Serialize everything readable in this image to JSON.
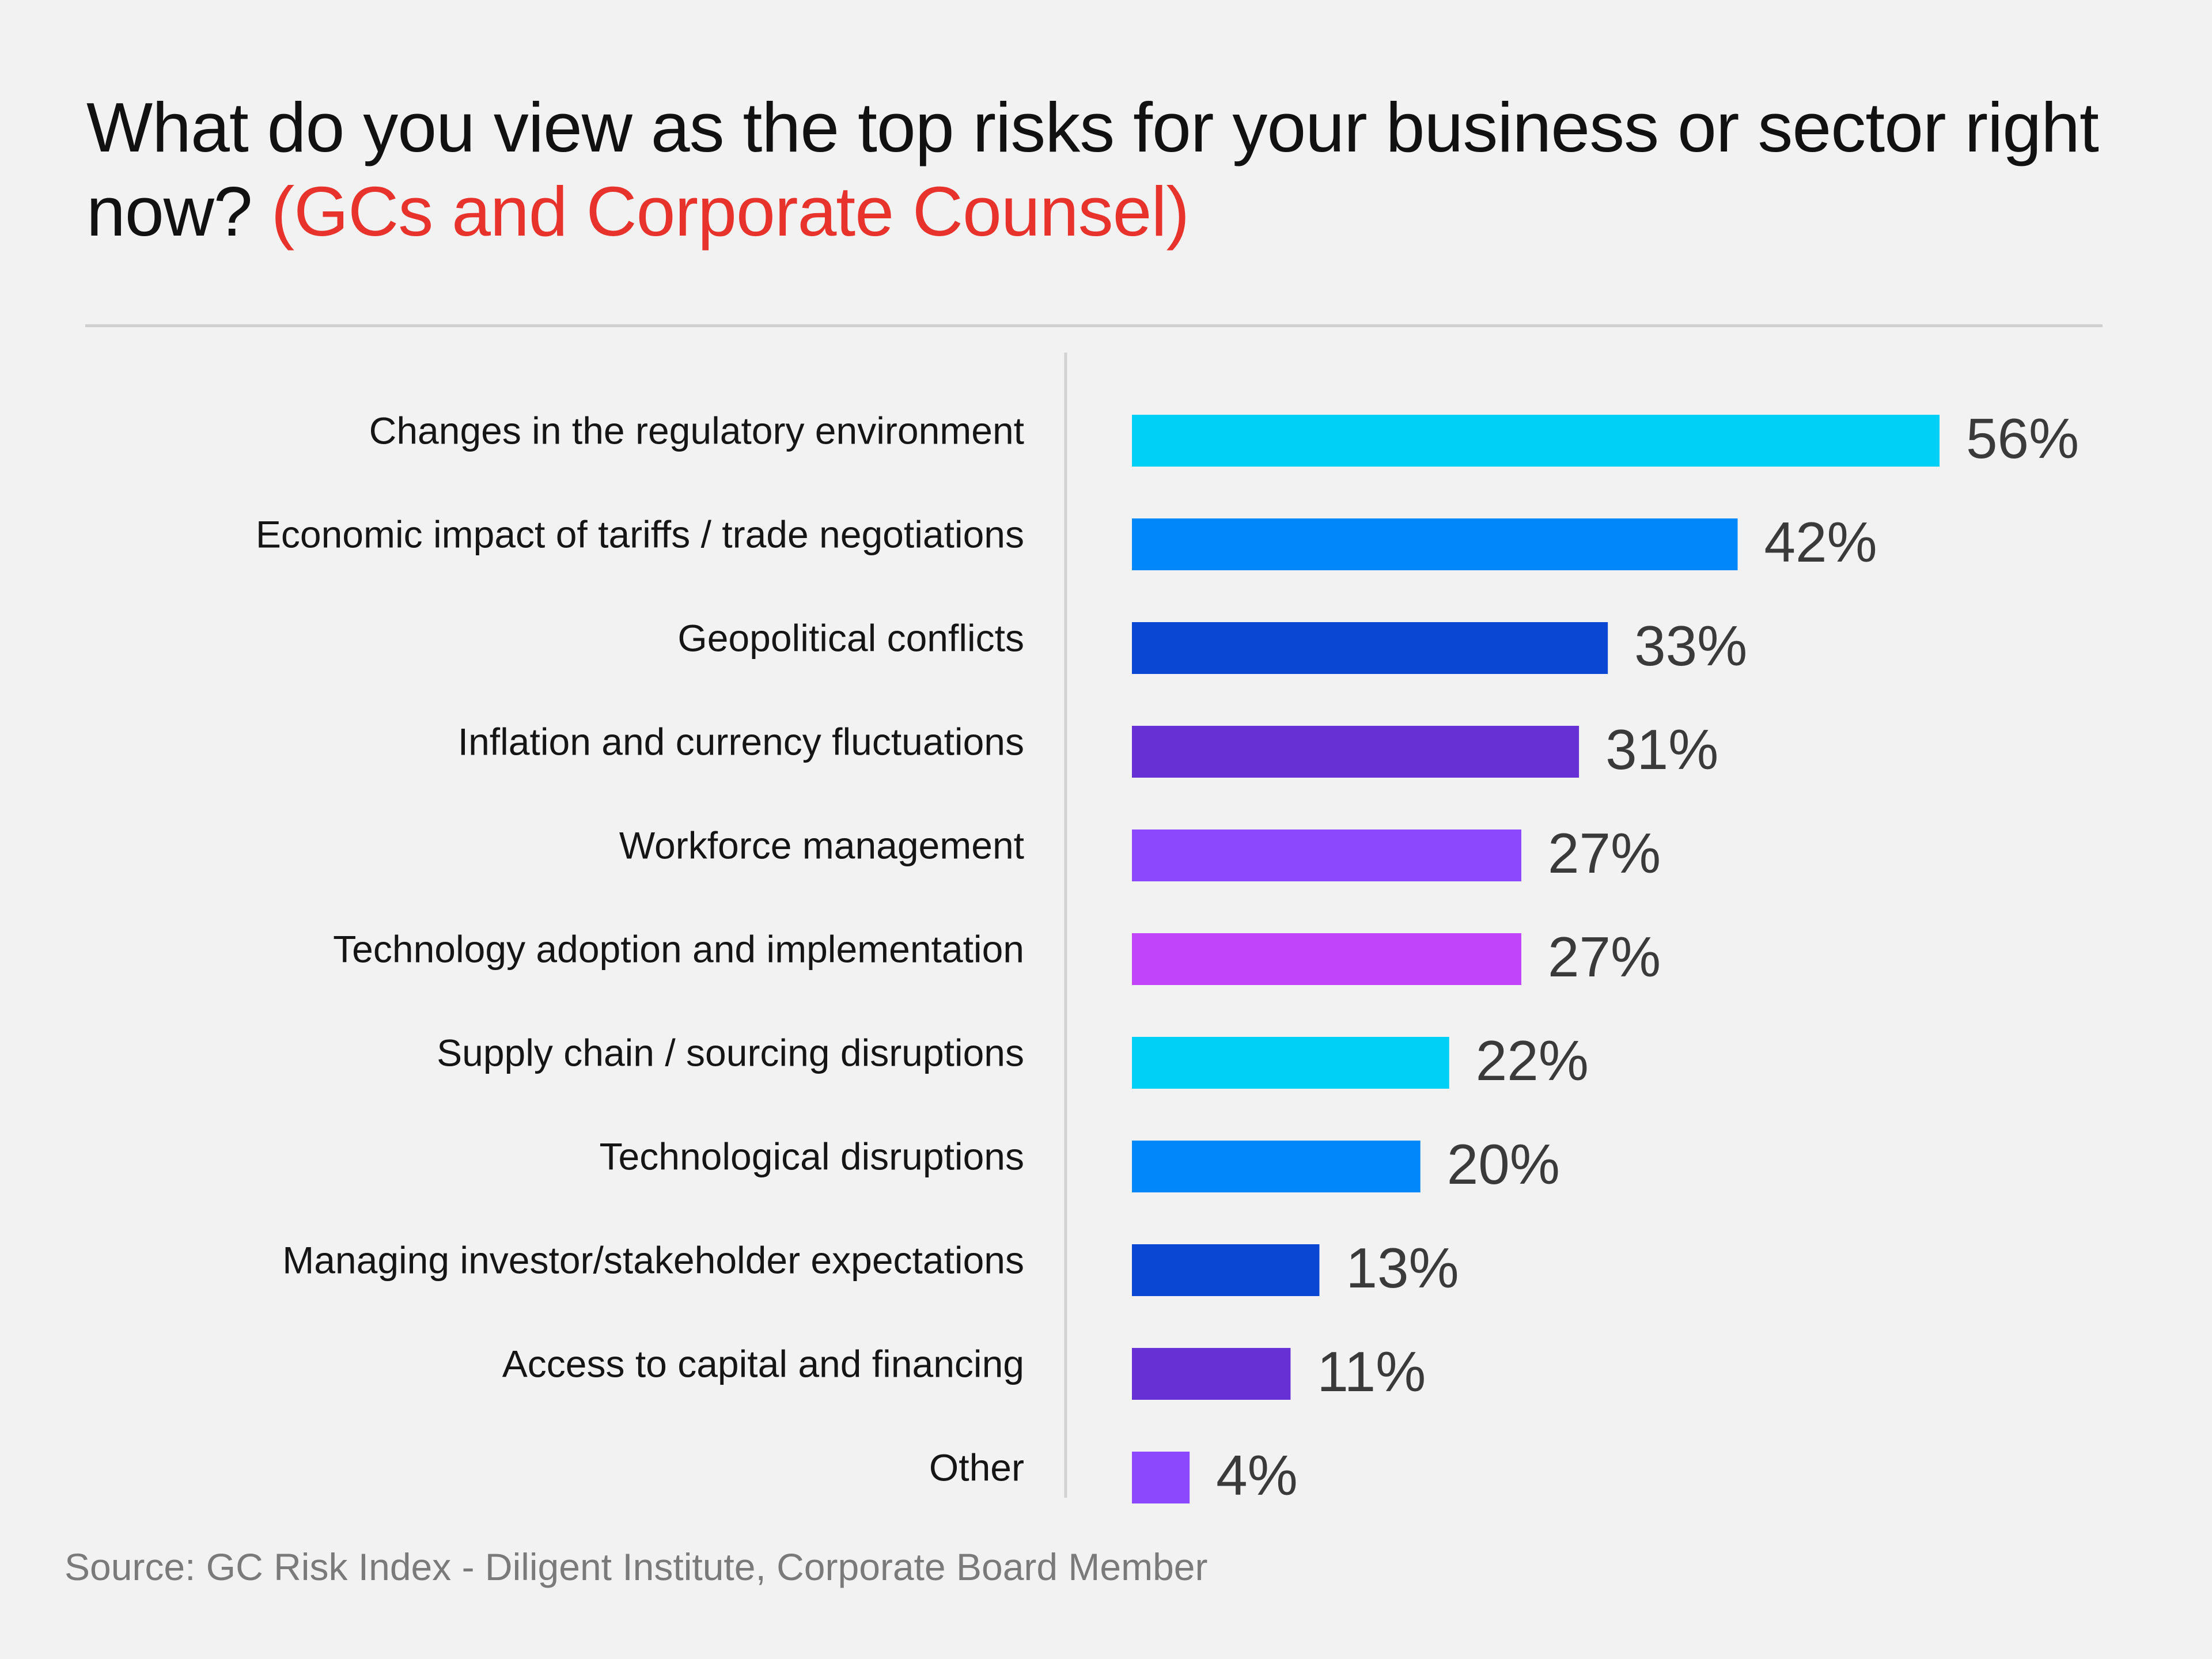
{
  "title": {
    "main": "What do you view as the top risks for your business or sector right now?",
    "accent": "(GCs and Corporate Counsel)"
  },
  "source": "Source: GC Risk Index - Diligent Institute, Corporate Board Member",
  "chart_data": {
    "type": "bar",
    "orientation": "horizontal",
    "title": "What do you view as the top risks for your business or sector right now? (GCs and Corporate Counsel)",
    "categories": [
      "Changes in the regulatory environment",
      "Economic impact of tariffs / trade negotiations",
      "Geopolitical conflicts",
      "Inflation and currency fluctuations",
      "Workforce management",
      "Technology adoption and implementation",
      "Supply chain / sourcing disruptions",
      "Technological disruptions",
      "Managing investor/stakeholder expectations",
      "Access to capital and financing",
      "Other"
    ],
    "values": [
      56,
      42,
      33,
      31,
      27,
      27,
      22,
      20,
      13,
      11,
      4
    ],
    "value_labels": [
      "56%",
      "42%",
      "33%",
      "31%",
      "27%",
      "27%",
      "22%",
      "20%",
      "13%",
      "11%",
      "4%"
    ],
    "unit": "%",
    "xlim": [
      0,
      56
    ],
    "grid": false,
    "legend": "none",
    "colors": [
      "#00d0f5",
      "#0088fb",
      "#0a48d3",
      "#6730d4",
      "#8b48fc",
      "#c144fb",
      "#00d0f5",
      "#0088fb",
      "#0a48d3",
      "#6730d4",
      "#8b48fc"
    ]
  }
}
